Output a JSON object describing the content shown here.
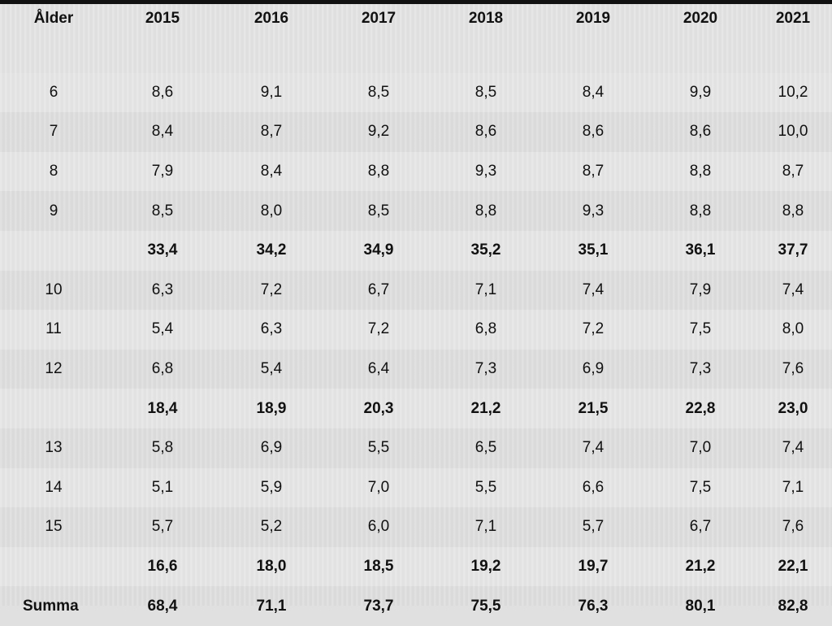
{
  "table": {
    "headers": [
      "Ålder",
      "2015",
      "2016",
      "2017",
      "2018",
      "2019",
      "2020",
      "2021"
    ],
    "rows": [
      {
        "type": "data",
        "cells": [
          "6",
          "8,6",
          "9,1",
          "8,5",
          "8,5",
          "8,4",
          "9,9",
          "10,2"
        ]
      },
      {
        "type": "data",
        "cells": [
          "7",
          "8,4",
          "8,7",
          "9,2",
          "8,6",
          "8,6",
          "8,6",
          "10,0"
        ]
      },
      {
        "type": "data",
        "cells": [
          "8",
          "7,9",
          "8,4",
          "8,8",
          "9,3",
          "8,7",
          "8,8",
          "8,7"
        ]
      },
      {
        "type": "data",
        "cells": [
          "9",
          "8,5",
          "8,0",
          "8,5",
          "8,8",
          "9,3",
          "8,8",
          "8,8"
        ]
      },
      {
        "type": "subtotal",
        "cells": [
          "",
          "33,4",
          "34,2",
          "34,9",
          "35,2",
          "35,1",
          "36,1",
          "37,7"
        ]
      },
      {
        "type": "data",
        "cells": [
          "10",
          "6,3",
          "7,2",
          "6,7",
          "7,1",
          "7,4",
          "7,9",
          "7,4"
        ]
      },
      {
        "type": "data",
        "cells": [
          "11",
          "5,4",
          "6,3",
          "7,2",
          "6,8",
          "7,2",
          "7,5",
          "8,0"
        ]
      },
      {
        "type": "data",
        "cells": [
          "12",
          "6,8",
          "5,4",
          "6,4",
          "7,3",
          "6,9",
          "7,3",
          "7,6"
        ]
      },
      {
        "type": "subtotal",
        "cells": [
          "",
          "18,4",
          "18,9",
          "20,3",
          "21,2",
          "21,5",
          "22,8",
          "23,0"
        ]
      },
      {
        "type": "data",
        "cells": [
          "13",
          "5,8",
          "6,9",
          "5,5",
          "6,5",
          "7,4",
          "7,0",
          "7,4"
        ]
      },
      {
        "type": "data",
        "cells": [
          "14",
          "5,1",
          "5,9",
          "7,0",
          "5,5",
          "6,6",
          "7,5",
          "7,1"
        ]
      },
      {
        "type": "data",
        "cells": [
          "15",
          "5,7",
          "5,2",
          "6,0",
          "7,1",
          "5,7",
          "6,7",
          "7,6"
        ]
      },
      {
        "type": "subtotal",
        "cells": [
          "",
          "16,6",
          "18,0",
          "18,5",
          "19,2",
          "19,7",
          "21,2",
          "22,1"
        ]
      },
      {
        "type": "total",
        "cells": [
          "Summa",
          "68,4",
          "71,1",
          "73,7",
          "75,5",
          "76,3",
          "80,1",
          "82,8"
        ]
      }
    ]
  }
}
